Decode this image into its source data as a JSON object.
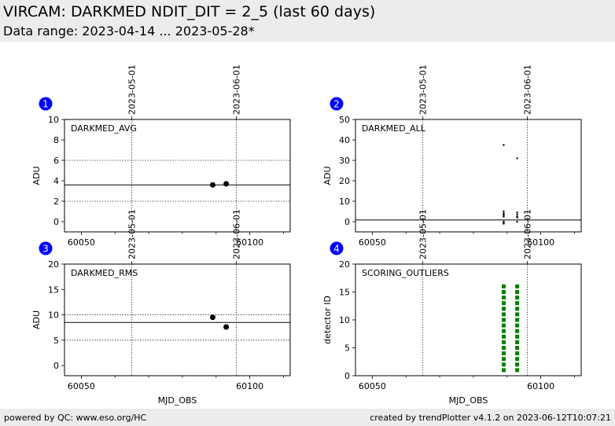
{
  "header": {
    "title": "VIRCAM: DARKMED NDIT_DIT = 2_5 (last 60 days)",
    "subtitle": "Data range: 2023-04-14 ... 2023-05-28*"
  },
  "footer": {
    "left": "powered by QC: www.eso.org/HC",
    "right": "created by trendPlotter v4.1.2 on 2023-06-12T10:07:21"
  },
  "colors": {
    "band": "#ececec",
    "marker_badge": "#0000ff",
    "outlier": "#008000",
    "points": "#000000"
  },
  "chart_data": [
    {
      "panel": "1",
      "type": "scatter",
      "label": "DARKMED_AVG",
      "ylabel": "ADU",
      "xlabel": "",
      "xlim": [
        60045,
        60112
      ],
      "ylim": [
        -1,
        10
      ],
      "yticks": [
        0,
        2,
        4,
        6,
        8,
        10
      ],
      "xticks": [
        60050,
        60100
      ],
      "top_date_ticks": [
        {
          "label": "2023-05-01",
          "mjd": 60065
        },
        {
          "label": "2023-06-01",
          "mjd": 60096
        }
      ],
      "reference_line": 3.6,
      "dotted_hlines": [
        2,
        6
      ],
      "points": [
        {
          "x": 60089,
          "y": 3.6
        },
        {
          "x": 60093,
          "y": 3.7
        }
      ],
      "marker": "big-dot"
    },
    {
      "panel": "2",
      "type": "scatter",
      "label": "DARKMED_ALL",
      "ylabel": "ADU",
      "xlabel": "",
      "xlim": [
        60045,
        60112
      ],
      "ylim": [
        -5,
        50
      ],
      "yticks": [
        0,
        10,
        20,
        30,
        40,
        50
      ],
      "xticks": [
        60050,
        60100
      ],
      "top_date_ticks": [
        {
          "label": "2023-05-01",
          "mjd": 60065
        },
        {
          "label": "2023-06-01",
          "mjd": 60096
        }
      ],
      "reference_line": 0.8,
      "dotted_hlines": [],
      "points": [
        {
          "x": 60089,
          "y": 37.5
        },
        {
          "x": 60089,
          "y": 5
        },
        {
          "x": 60089,
          "y": 4
        },
        {
          "x": 60089,
          "y": 3.5
        },
        {
          "x": 60089,
          "y": 3
        },
        {
          "x": 60089,
          "y": 2.5
        },
        {
          "x": 60089,
          "y": 0
        },
        {
          "x": 60089,
          "y": -0.5
        },
        {
          "x": 60089,
          "y": -1
        },
        {
          "x": 60093,
          "y": 31
        },
        {
          "x": 60093,
          "y": 4.5
        },
        {
          "x": 60093,
          "y": 3.5
        },
        {
          "x": 60093,
          "y": 2.5
        },
        {
          "x": 60093,
          "y": 2
        },
        {
          "x": 60093,
          "y": 0
        }
      ],
      "marker": "small-dot"
    },
    {
      "panel": "3",
      "type": "scatter",
      "label": "DARKMED_RMS",
      "ylabel": "ADU",
      "xlabel": "MJD_OBS",
      "xlim": [
        60045,
        60112
      ],
      "ylim": [
        -2,
        20
      ],
      "yticks": [
        0,
        5,
        10,
        15,
        20
      ],
      "xticks": [
        60050,
        60100
      ],
      "top_date_ticks": [
        {
          "label": "2023-05-01",
          "mjd": 60065
        },
        {
          "label": "2023-06-01",
          "mjd": 60096
        }
      ],
      "reference_line": 8.5,
      "dotted_hlines": [
        5,
        10
      ],
      "points": [
        {
          "x": 60089,
          "y": 9.5
        },
        {
          "x": 60093,
          "y": 7.6
        }
      ],
      "marker": "big-dot"
    },
    {
      "panel": "4",
      "type": "scatter",
      "label": "SCORING_OUTLIERS",
      "ylabel": "detector ID",
      "xlabel": "MJD_OBS",
      "xlim": [
        60045,
        60112
      ],
      "ylim": [
        0,
        20
      ],
      "yticks": [
        0,
        5,
        10,
        15,
        20
      ],
      "xticks": [
        60050,
        60100
      ],
      "top_date_ticks": [
        {
          "label": "2023-05-01",
          "mjd": 60065
        },
        {
          "label": "2023-06-01",
          "mjd": 60096
        }
      ],
      "reference_line": null,
      "dotted_hlines": [],
      "outlier_columns": [
        {
          "x": 60089,
          "detectors": [
            1,
            2,
            3,
            4,
            5,
            6,
            7,
            8,
            9,
            10,
            11,
            12,
            13,
            14,
            15,
            16
          ]
        },
        {
          "x": 60093,
          "detectors": [
            1,
            2,
            3,
            4,
            5,
            6,
            7,
            8,
            9,
            10,
            11,
            12,
            13,
            14,
            15,
            16
          ]
        }
      ],
      "marker": "green-square"
    }
  ]
}
